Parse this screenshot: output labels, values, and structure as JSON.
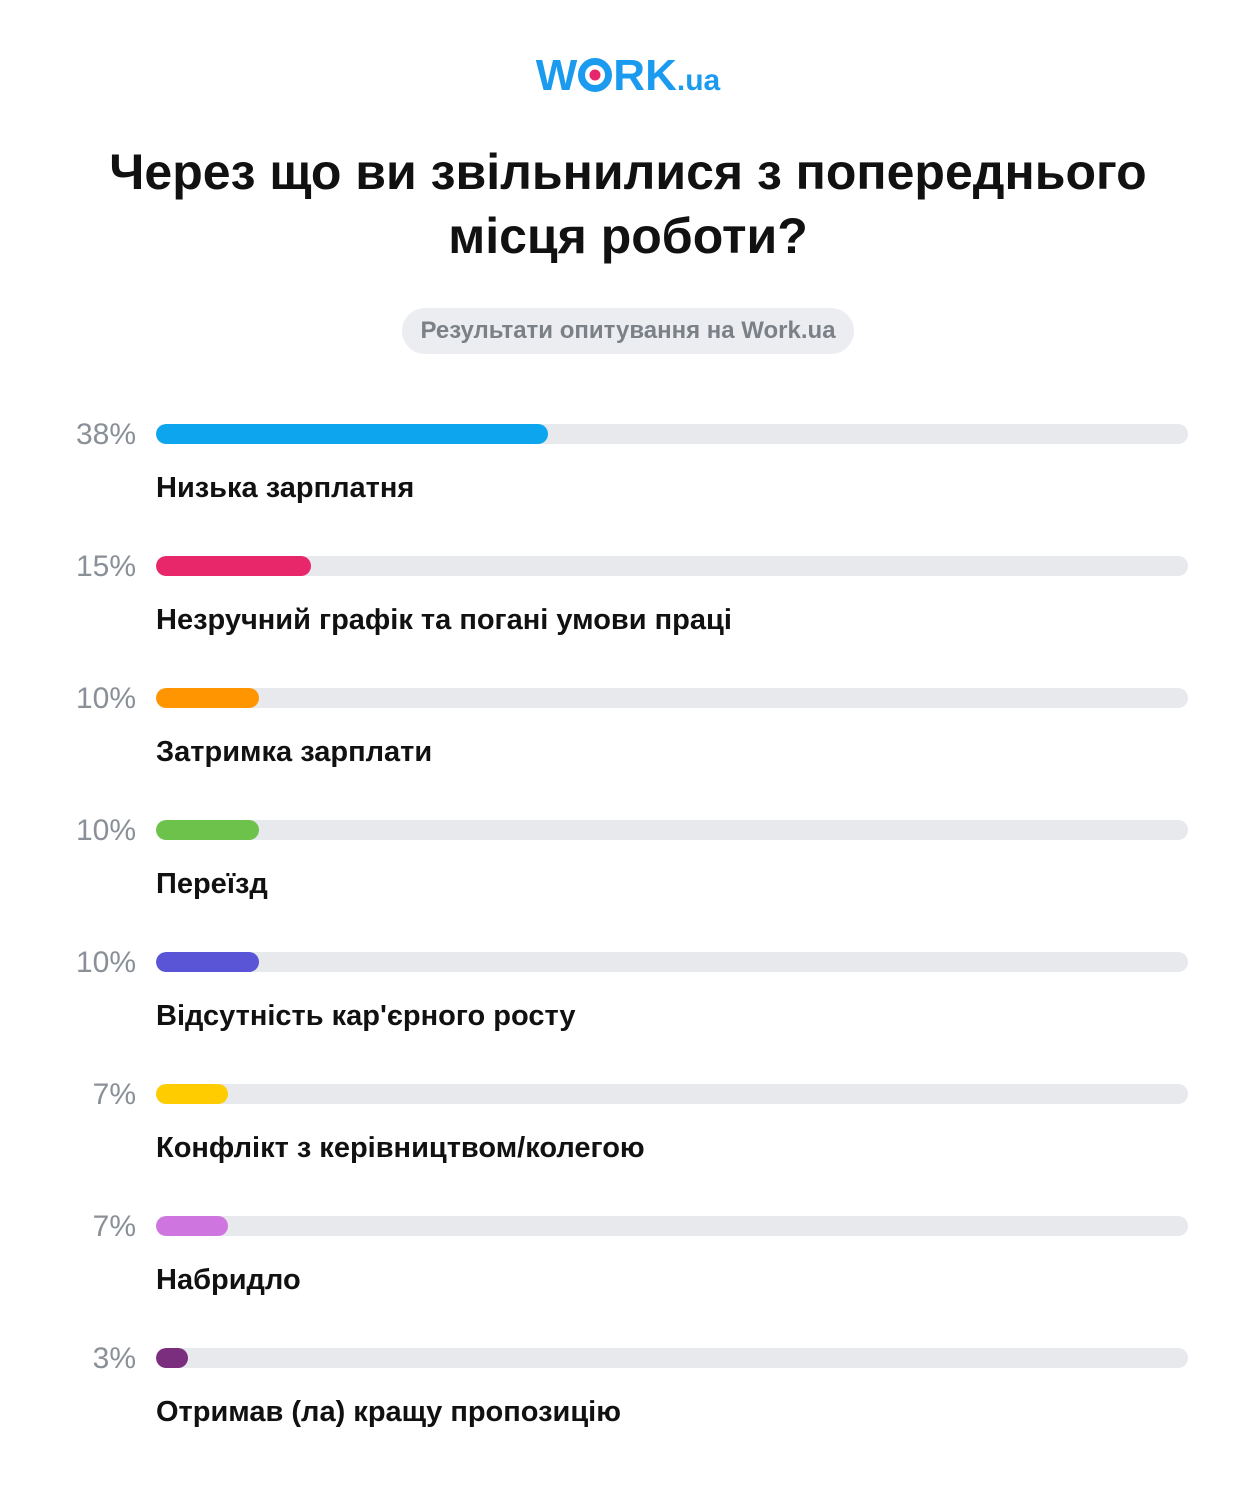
{
  "logo": {
    "main_before": "W",
    "main_after": "RK",
    "suffix": ".ua"
  },
  "header": {
    "title": "Через що ви звільнилися з попереднього місця роботи?",
    "subtitle": "Результати опитування на Work.ua"
  },
  "chart_data": {
    "type": "bar",
    "orientation": "horizontal",
    "title": "Через що ви звільнилися з попереднього місця роботи?",
    "subtitle": "Результати опитування на Work.ua",
    "xlim": [
      0,
      100
    ],
    "grid": false,
    "categories": [
      "Низька зарплатня",
      "Незручний графік та погані умови праці",
      "Затримка зарплати",
      "Переїзд",
      "Відсутність кар'єрного росту",
      "Конфлікт з керівництвом/колегою",
      "Набридло",
      "Отримав (ла) кращу пропозицію"
    ],
    "values": [
      38,
      15,
      10,
      10,
      10,
      7,
      7,
      3
    ],
    "value_labels": [
      "38%",
      "15%",
      "10%",
      "10%",
      "10%",
      "7%",
      "7%",
      "3%"
    ],
    "colors": [
      "#0ea5ef",
      "#e8276b",
      "#ff9500",
      "#6cc24a",
      "#5a55d6",
      "#ffcc00",
      "#cf75e0",
      "#7b2d7e"
    ],
    "track_color": "#e8e9ec"
  }
}
